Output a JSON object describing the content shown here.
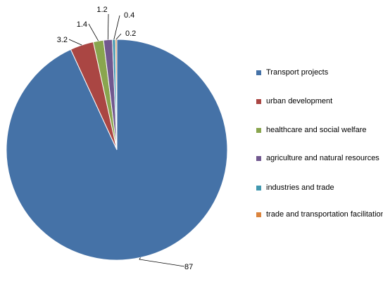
{
  "chart_data": {
    "type": "pie",
    "title": "",
    "legend_position": "right",
    "slices": [
      {
        "label": "Transport projects",
        "value": 87,
        "color": "#4572A7"
      },
      {
        "label": "urban development",
        "value": 3.2,
        "color": "#AA4643"
      },
      {
        "label": "healthcare and social welfare",
        "value": 1.4,
        "color": "#89A54E"
      },
      {
        "label": "agriculture and natural resources",
        "value": 1.2,
        "color": "#71588F"
      },
      {
        "label": "industries and trade",
        "value": 0.4,
        "color": "#4198AF"
      },
      {
        "label": "trade and transportation facilitation",
        "value": 0.2,
        "color": "#DB843D"
      }
    ]
  }
}
